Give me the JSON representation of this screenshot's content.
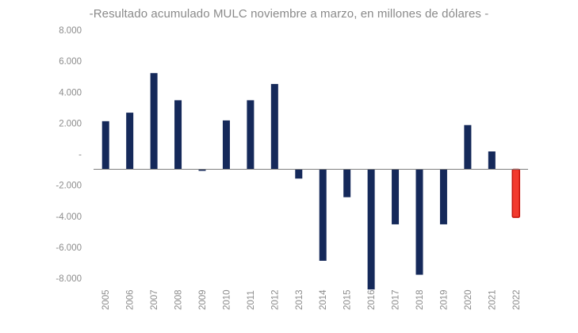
{
  "chart_data": {
    "type": "bar",
    "title": "-Resultado acumulado MULC noviembre a marzo, en millones de dólares -",
    "xlabel": "",
    "ylabel": "",
    "ylim": [
      -8000,
      8000
    ],
    "yticks": [
      8000,
      6000,
      4000,
      2000,
      0,
      -2000,
      -4000,
      -6000,
      -8000
    ],
    "ytick_labels": [
      "8.000",
      "6.000",
      "4.000",
      "2.000",
      "-",
      "-2.000",
      "-4.000",
      "-6.000",
      "-8.000"
    ],
    "categories": [
      "2005",
      "2006",
      "2007",
      "2008",
      "2009",
      "2010",
      "2011",
      "2012",
      "2013",
      "2014",
      "2015",
      "2016",
      "2017",
      "2018",
      "2019",
      "2020",
      "2021",
      "2022"
    ],
    "values": [
      3100,
      3650,
      6200,
      4450,
      -100,
      3150,
      4450,
      5500,
      -600,
      -5900,
      -1800,
      -7750,
      -3550,
      -6800,
      -3550,
      2850,
      1150,
      -3100
    ],
    "grid": false,
    "legend": "none",
    "colors": {
      "bar": "#15295a",
      "highlight": "#f23a2e",
      "highlight_border": "#c4140c",
      "axis": "#7f7f7f",
      "text": "#8a8a8a"
    },
    "highlight_category": "2022"
  }
}
